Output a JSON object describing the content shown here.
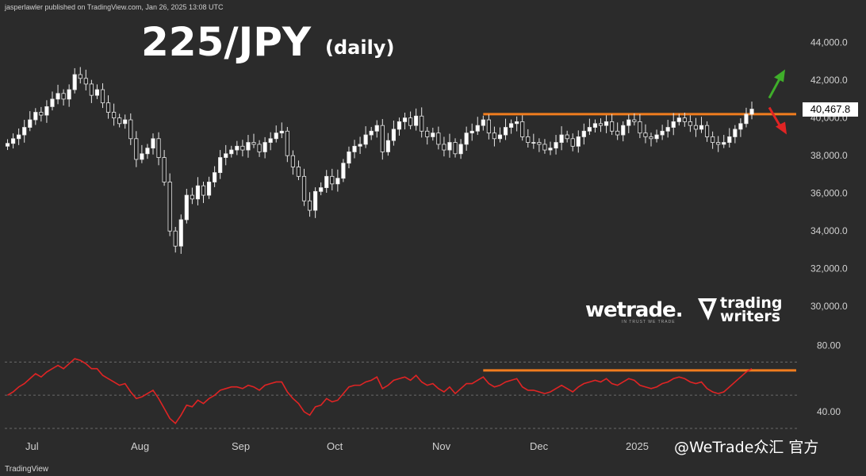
{
  "header": {
    "published": "jasperlawler published on TradingView.com, Jan 26, 2025 13:08 UTC"
  },
  "title": "225/JPY",
  "subtitle": "(daily)",
  "last_price_label": "40,467.8",
  "logos": {
    "wetrade": "wetrade.",
    "wetrade_tag": "IN TRUST WE TRADE",
    "trading_writers": [
      "trading",
      "writers"
    ]
  },
  "footer": {
    "tradingview": "TradingView",
    "watermark": "@WeTrade众汇 官方"
  },
  "colors": {
    "bg": "#2b2b2b",
    "up": "#ffffff",
    "down": "#1f1f1f",
    "resistance": "#f07c1e",
    "rsi": "#e02424",
    "arrow_up": "#3fae2a",
    "arrow_down": "#e02424"
  },
  "chart_data": [
    {
      "type": "candlestick",
      "title": "225/JPY",
      "subtitle": "(daily)",
      "x_labels": [
        "Jul",
        "Aug",
        "Sep",
        "Oct",
        "Nov",
        "Dec",
        "2025"
      ],
      "y_ticks": [
        "44,000.0",
        "42,000.0",
        "40,000.0",
        "38,000.0",
        "36,000.0",
        "34,000.0",
        "32,000.0",
        "30,000.0"
      ],
      "ylim": [
        29000,
        45500
      ],
      "last": 40467.8,
      "resistance": 40200,
      "close": [
        38650,
        38900,
        39100,
        39500,
        39900,
        40300,
        40150,
        40600,
        41000,
        41300,
        41000,
        41500,
        42300,
        42100,
        41800,
        41200,
        41500,
        40800,
        40300,
        40000,
        39700,
        39900,
        38900,
        37800,
        38100,
        38400,
        38900,
        37900,
        36600,
        34000,
        33200,
        34600,
        35900,
        35700,
        36400,
        35900,
        36600,
        37100,
        37900,
        38100,
        38300,
        38500,
        38300,
        38700,
        38600,
        38200,
        38700,
        38900,
        39200,
        39300,
        38000,
        37400,
        36900,
        35600,
        35100,
        36100,
        36300,
        36900,
        36500,
        36800,
        37600,
        38200,
        38500,
        38600,
        39100,
        39300,
        39600,
        38200,
        38800,
        39400,
        39800,
        40000,
        39600,
        40100,
        39300,
        39000,
        39200,
        38600,
        38300,
        38700,
        38100,
        38600,
        39200,
        39300,
        39600,
        39900,
        39200,
        38900,
        39100,
        39500,
        39700,
        39800,
        39000,
        38700,
        38700,
        38600,
        38300,
        38400,
        38700,
        39100,
        38900,
        38500,
        39000,
        39300,
        39500,
        39700,
        39600,
        39800,
        39300,
        39100,
        39600,
        39900,
        39800,
        39200,
        39000,
        38900,
        39100,
        39300,
        39500,
        39800,
        40000,
        39800,
        39600,
        39400,
        39600,
        39000,
        38700,
        38600,
        38700,
        39000,
        39400,
        39700,
        40200,
        40467.8
      ]
    },
    {
      "type": "line",
      "name": "RSI",
      "y_ticks": [
        "80.00",
        "40.00"
      ],
      "ylim": [
        30,
        85
      ],
      "levels": [
        70,
        50,
        30
      ],
      "resistance": 65,
      "values": [
        50,
        52,
        55,
        57,
        60,
        63,
        61,
        64,
        66,
        68,
        66,
        69,
        72,
        71,
        69,
        66,
        66,
        62,
        60,
        58,
        56,
        57,
        52,
        48,
        49,
        51,
        53,
        48,
        42,
        36,
        33,
        38,
        44,
        43,
        47,
        45,
        48,
        50,
        53,
        54,
        55,
        55,
        54,
        56,
        55,
        53,
        56,
        57,
        58,
        58,
        52,
        48,
        45,
        40,
        38,
        43,
        44,
        48,
        46,
        47,
        51,
        55,
        56,
        56,
        58,
        59,
        61,
        54,
        56,
        59,
        60,
        61,
        59,
        62,
        58,
        56,
        57,
        54,
        52,
        55,
        51,
        54,
        57,
        57,
        59,
        61,
        57,
        55,
        56,
        58,
        59,
        60,
        55,
        53,
        53,
        52,
        51,
        52,
        54,
        56,
        54,
        52,
        55,
        57,
        58,
        59,
        58,
        60,
        57,
        56,
        58,
        60,
        59,
        56,
        55,
        54,
        55,
        57,
        58,
        60,
        61,
        60,
        58,
        57,
        58,
        54,
        52,
        51,
        52,
        55,
        58,
        61,
        64,
        66
      ]
    }
  ]
}
